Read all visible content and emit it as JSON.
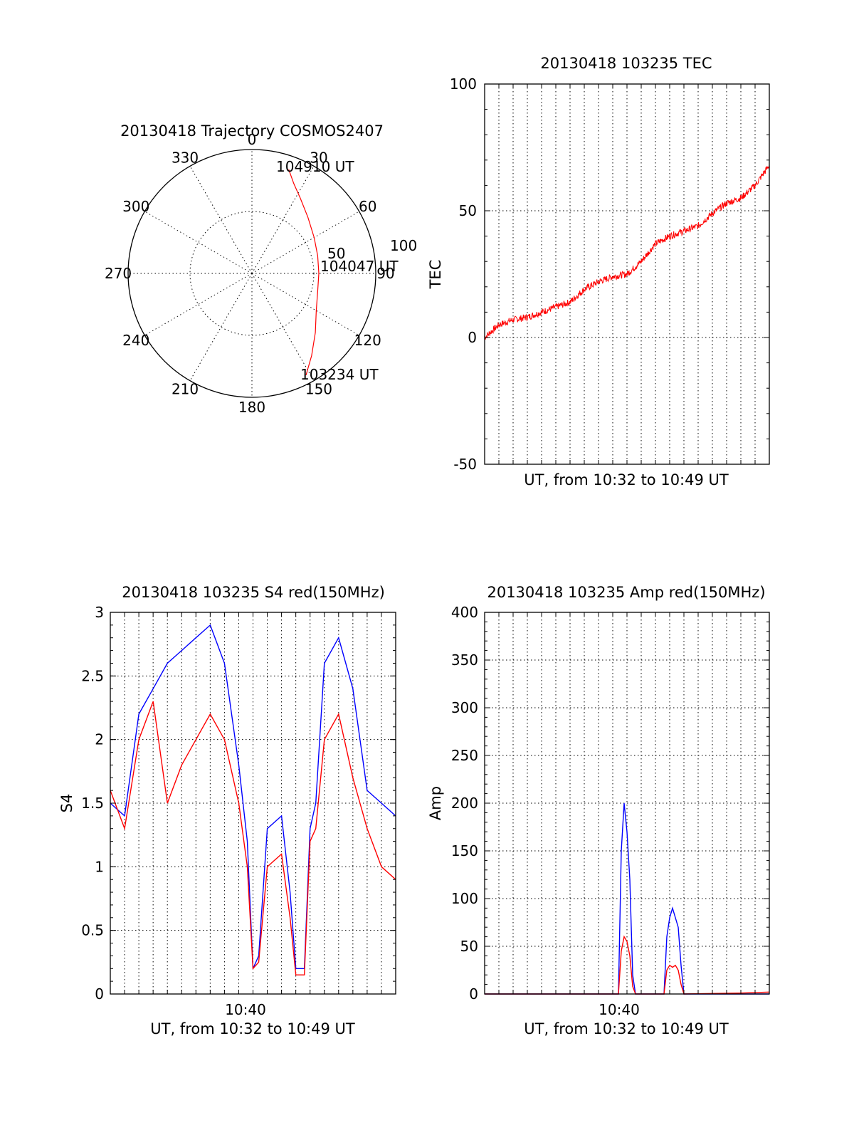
{
  "chart_data": [
    {
      "type": "polar",
      "title": "20130418 Trajectory COSMOS2407",
      "angle_labels": [
        "0",
        "30",
        "60",
        "90",
        "120",
        "150",
        "180",
        "210",
        "240",
        "270",
        "300",
        "330"
      ],
      "radius_labels": [
        "50",
        "100"
      ],
      "rlim": [
        0,
        100
      ],
      "annotations": [
        "104910 UT",
        "104047 UT",
        "103234 UT"
      ],
      "series": [
        {
          "color": "#ff0000",
          "points": [
            {
              "az": 19.5,
              "r": 89
            },
            {
              "az": 25,
              "r": 80
            },
            {
              "az": 33,
              "r": 72
            },
            {
              "az": 45,
              "r": 64
            },
            {
              "az": 60,
              "r": 58
            },
            {
              "az": 75,
              "r": 55
            },
            {
              "az": 90,
              "r": 54
            },
            {
              "az": 105,
              "r": 55
            },
            {
              "az": 120,
              "r": 60
            },
            {
              "az": 133,
              "r": 70
            },
            {
              "az": 144,
              "r": 82
            },
            {
              "az": 152,
              "r": 93
            }
          ]
        }
      ]
    },
    {
      "type": "line",
      "title": "20130418 103235 TEC",
      "xlabel": "UT, from 10:32 to 10:49 UT",
      "ylabel": "TEC",
      "ylim": [
        -50,
        100
      ],
      "yticks": [
        "100",
        "50",
        "0",
        "-50"
      ],
      "grid": true,
      "series": [
        {
          "color": "#ff0000",
          "x": [
            0,
            0.05,
            0.1,
            0.15,
            0.2,
            0.25,
            0.3,
            0.35,
            0.4,
            0.45,
            0.5,
            0.55,
            0.6,
            0.65,
            0.7,
            0.75,
            0.8,
            0.85,
            0.9,
            0.95,
            1.0
          ],
          "values": [
            0,
            5,
            7,
            8,
            10,
            12,
            14,
            19,
            22,
            24,
            25,
            30,
            37,
            40,
            42,
            44,
            49,
            53,
            55,
            60,
            68
          ]
        }
      ]
    },
    {
      "type": "line",
      "title": "20130418 103235 S4 red(150MHz)",
      "xlabel": "UT, from 10:32 to 10:49 UT",
      "ylabel": "S4",
      "xticks": [
        "10:40"
      ],
      "ylim": [
        0,
        3
      ],
      "yticks": [
        "3",
        "2.5",
        "2",
        "1.5",
        "1",
        "0.5",
        "0"
      ],
      "grid": true,
      "series": [
        {
          "color": "#0000ff",
          "x": [
            0,
            0.05,
            0.1,
            0.15,
            0.2,
            0.25,
            0.3,
            0.35,
            0.4,
            0.45,
            0.48,
            0.5,
            0.52,
            0.55,
            0.6,
            0.63,
            0.65,
            0.68,
            0.7,
            0.72,
            0.75,
            0.8,
            0.85,
            0.9,
            0.95,
            1.0
          ],
          "values": [
            1.5,
            1.4,
            2.2,
            2.4,
            2.6,
            2.7,
            2.8,
            2.9,
            2.6,
            1.8,
            1.2,
            0.2,
            0.3,
            1.3,
            1.4,
            0.8,
            0.2,
            0.2,
            1.3,
            1.5,
            2.6,
            2.8,
            2.4,
            1.6,
            1.5,
            1.4
          ]
        },
        {
          "color": "#ff0000",
          "x": [
            0,
            0.05,
            0.1,
            0.15,
            0.2,
            0.25,
            0.3,
            0.35,
            0.4,
            0.45,
            0.48,
            0.5,
            0.52,
            0.55,
            0.6,
            0.63,
            0.65,
            0.68,
            0.7,
            0.72,
            0.75,
            0.8,
            0.85,
            0.9,
            0.95,
            1.0
          ],
          "values": [
            1.6,
            1.3,
            2.0,
            2.3,
            1.5,
            1.8,
            2.0,
            2.2,
            2.0,
            1.5,
            1.0,
            0.2,
            0.25,
            1.0,
            1.1,
            0.6,
            0.15,
            0.15,
            1.2,
            1.3,
            2.0,
            2.2,
            1.7,
            1.3,
            1.0,
            0.9
          ]
        }
      ]
    },
    {
      "type": "line",
      "title": "20130418 103235 Amp red(150MHz)",
      "xlabel": "UT, from 10:32 to 10:49 UT",
      "ylabel": "Amp",
      "xticks": [
        "10:40"
      ],
      "ylim": [
        0,
        400
      ],
      "yticks": [
        "400",
        "350",
        "300",
        "250",
        "200",
        "150",
        "100",
        "50",
        "0"
      ],
      "grid": true,
      "series": [
        {
          "color": "#0000ff",
          "x": [
            0,
            0.2,
            0.4,
            0.47,
            0.48,
            0.49,
            0.5,
            0.51,
            0.52,
            0.53,
            0.6,
            0.63,
            0.64,
            0.65,
            0.66,
            0.67,
            0.68,
            0.69,
            0.7,
            0.9,
            1.0
          ],
          "values": [
            0,
            0,
            0,
            0,
            150,
            200,
            170,
            120,
            20,
            0,
            0,
            0,
            60,
            80,
            90,
            80,
            70,
            30,
            0,
            0,
            0
          ]
        },
        {
          "color": "#ff0000",
          "x": [
            0,
            0.2,
            0.4,
            0.47,
            0.48,
            0.49,
            0.5,
            0.51,
            0.52,
            0.53,
            0.6,
            0.63,
            0.64,
            0.65,
            0.66,
            0.67,
            0.68,
            0.69,
            0.7,
            0.9,
            1.0
          ],
          "values": [
            0,
            0,
            0,
            0,
            45,
            60,
            55,
            40,
            8,
            0,
            0,
            0,
            25,
            30,
            28,
            30,
            25,
            10,
            0,
            1,
            2
          ]
        }
      ]
    }
  ]
}
